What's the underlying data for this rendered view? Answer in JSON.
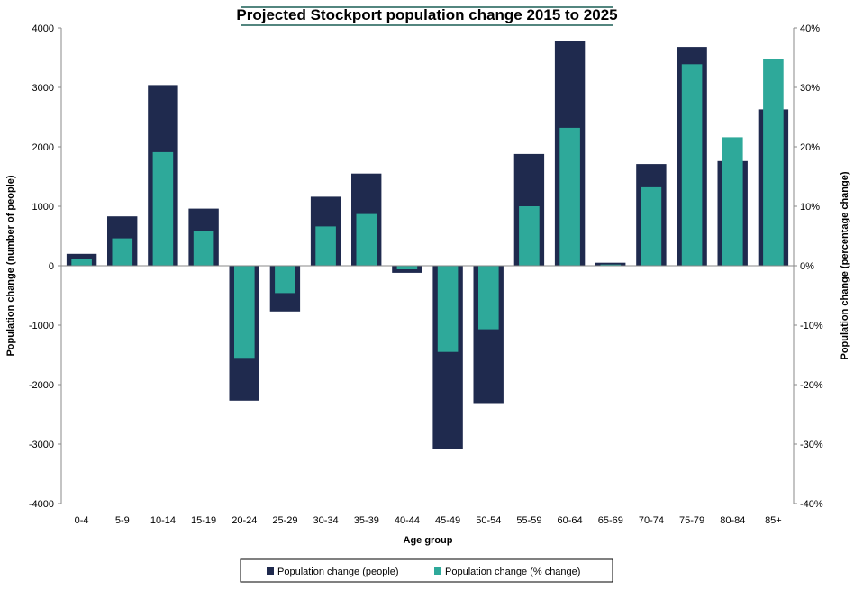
{
  "chart_data": {
    "type": "bar",
    "title": "Projected Stockport population change 2015 to 2025",
    "xlabel": "Age group",
    "ylabel": "Population change  (number of people)",
    "y2label": "Population change (percentage change)",
    "categories": [
      "0-4",
      "5-9",
      "10-14",
      "15-19",
      "20-24",
      "25-29",
      "30-34",
      "35-39",
      "40-44",
      "45-49",
      "50-54",
      "55-59",
      "60-64",
      "65-69",
      "70-74",
      "75-79",
      "80-84",
      "85+"
    ],
    "ylim": [
      -4000,
      4000
    ],
    "y2lim": [
      -40,
      40
    ],
    "yticks": [
      "-4000",
      "-3000",
      "-2000",
      "-1000",
      "0",
      "1000",
      "2000",
      "3000",
      "4000"
    ],
    "y2ticks": [
      "-40%",
      "-30%",
      "-20%",
      "-10%",
      "0%",
      "10%",
      "20%",
      "30%",
      "40%"
    ],
    "grid": false,
    "legend_position": "bottom",
    "series": [
      {
        "name": "Population change (people)",
        "axis": "left",
        "color": "#1f2a4e",
        "values": [
          200,
          830,
          3040,
          960,
          -2270,
          -770,
          1160,
          1550,
          -120,
          -3080,
          -2310,
          1880,
          3780,
          50,
          1710,
          3680,
          1760,
          2630
        ]
      },
      {
        "name": "Population change (% change)",
        "axis": "right",
        "color": "#2ea99a",
        "values": [
          1.1,
          4.6,
          19.1,
          5.9,
          -15.5,
          -4.6,
          6.6,
          8.7,
          -0.6,
          -14.5,
          -10.7,
          10.0,
          23.2,
          0.2,
          13.2,
          33.9,
          21.6,
          34.8
        ]
      }
    ]
  }
}
